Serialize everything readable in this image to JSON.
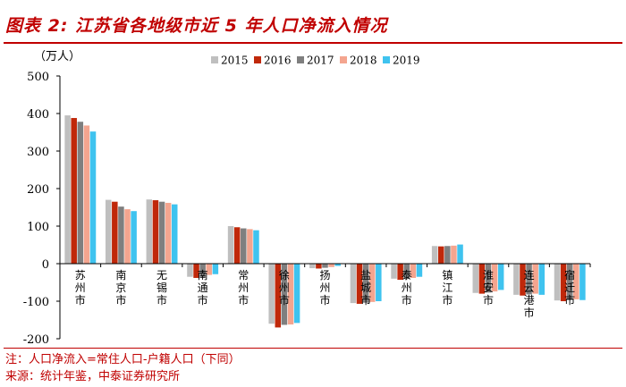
{
  "header": {
    "title": "图表 2: 江苏省各地级市近 5 年人口净流入情况"
  },
  "footer": {
    "note": "注：人口净流入=常住人口-户籍人口（下同）",
    "source": "来源：统计年鉴，中泰证券研究所"
  },
  "colors": {
    "accent": "#c00000",
    "s2015": "#bfbfbf",
    "s2016": "#c0280a",
    "s2017": "#7f7f7f",
    "s2018": "#f4a58f",
    "s2019": "#3fc3ef"
  },
  "chart_data": {
    "type": "bar",
    "title": "江苏省各地级市近 5 年人口净流入情况",
    "ylabel": "（万人）",
    "xlabel": "",
    "ylim": [
      -200,
      500
    ],
    "yticks": [
      -200,
      -100,
      0,
      100,
      200,
      300,
      400,
      500
    ],
    "legend_position": "top-center",
    "categories": [
      "苏州市",
      "南京市",
      "无锡市",
      "南通市",
      "常州市",
      "徐州市",
      "扬州市",
      "盐城市",
      "泰州市",
      "镇江市",
      "淮安市",
      "连云港市",
      "宿迁市"
    ],
    "series": [
      {
        "name": "2015",
        "values": [
          395,
          170,
          171,
          -35,
          100,
          -160,
          -12,
          -105,
          -40,
          47,
          -78,
          -83,
          -98
        ]
      },
      {
        "name": "2016",
        "values": [
          388,
          165,
          169,
          -38,
          97,
          -170,
          -13,
          -107,
          -43,
          46,
          -80,
          -85,
          -100
        ]
      },
      {
        "name": "2017",
        "values": [
          378,
          152,
          165,
          -36,
          94,
          -163,
          -11,
          -104,
          -40,
          47,
          -77,
          -82,
          -97
        ]
      },
      {
        "name": "2018",
        "values": [
          368,
          145,
          162,
          -30,
          92,
          -162,
          -9,
          -102,
          -38,
          48,
          -74,
          -80,
          -95
        ]
      },
      {
        "name": "2019",
        "values": [
          352,
          140,
          158,
          -28,
          89,
          -158,
          -6,
          -100,
          -35,
          51,
          -70,
          -83,
          -97
        ]
      }
    ]
  }
}
